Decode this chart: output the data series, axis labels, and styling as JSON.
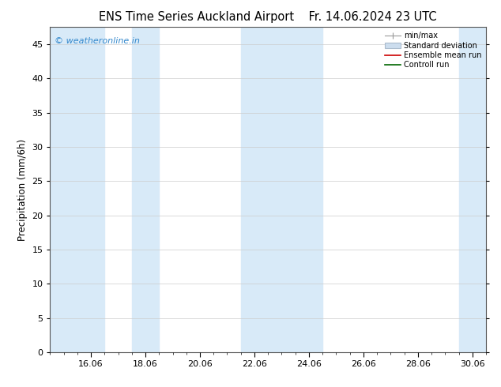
{
  "title_left": "ENS Time Series Auckland Airport",
  "title_right": "Fr. 14.06.2024 23 UTC",
  "ylabel": "Precipitation (mm/6h)",
  "ylim": [
    0,
    47.5
  ],
  "yticks": [
    0,
    5,
    10,
    15,
    20,
    25,
    30,
    35,
    40,
    45
  ],
  "xlim_start": 14.5,
  "xlim_end": 30.5,
  "xtick_labels": [
    "16.06",
    "18.06",
    "20.06",
    "22.06",
    "24.06",
    "26.06",
    "28.06",
    "30.06"
  ],
  "xtick_positions": [
    16,
    18,
    20,
    22,
    24,
    26,
    28,
    30
  ],
  "shaded_bands": [
    [
      14.5,
      16.5
    ],
    [
      17.5,
      18.5
    ],
    [
      21.5,
      24.5
    ],
    [
      29.5,
      30.5
    ]
  ],
  "band_color": "#d8eaf8",
  "bg_color": "#ffffff",
  "plot_bg_color": "#ffffff",
  "watermark": "© weatheronline.in",
  "watermark_color": "#3388cc",
  "legend_items": [
    "min/max",
    "Standard deviation",
    "Ensemble mean run",
    "Controll run"
  ],
  "title_fontsize": 10.5,
  "axis_fontsize": 8.5,
  "tick_fontsize": 8
}
